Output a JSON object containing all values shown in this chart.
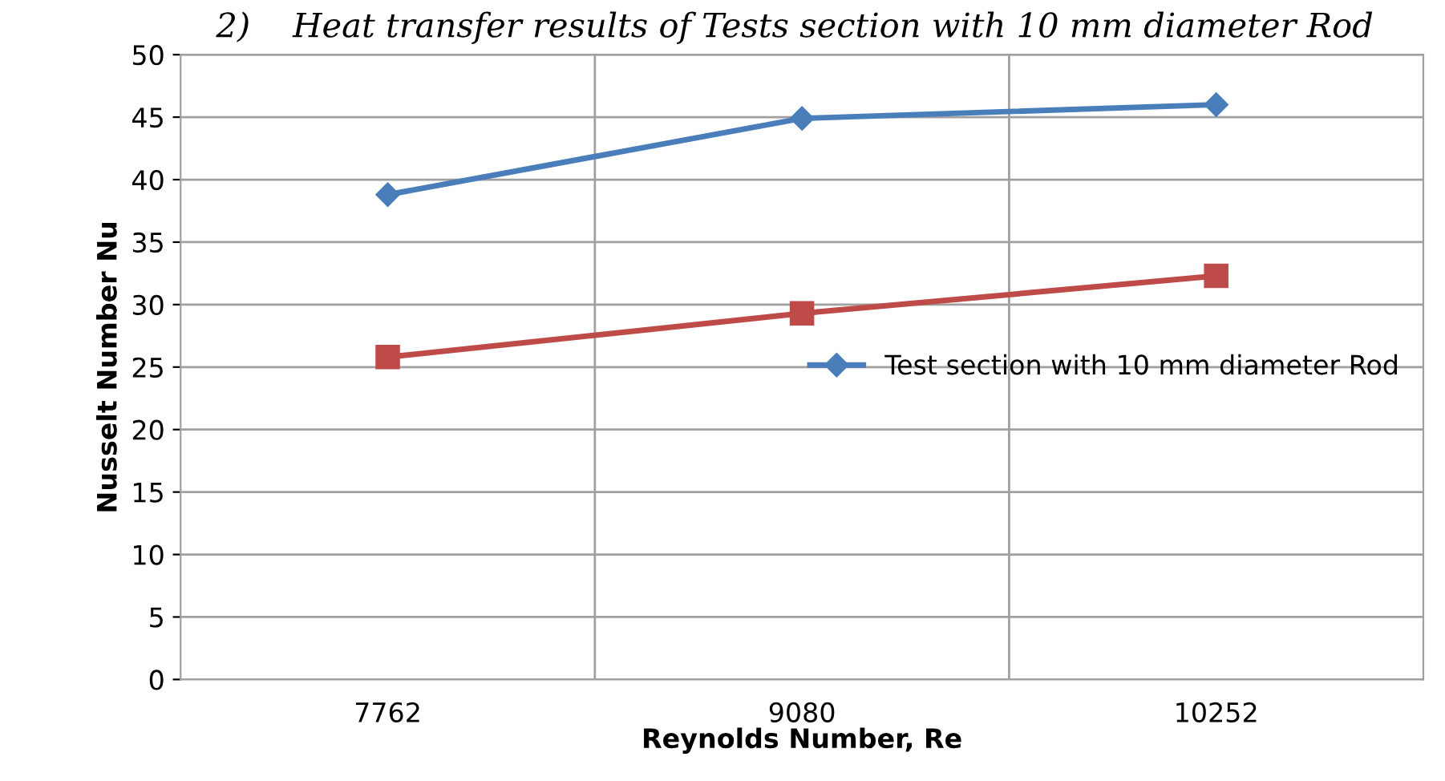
{
  "chart_data": {
    "type": "line",
    "title": "2)    Heat transfer results of Tests section with 10 mm diameter Rod",
    "xlabel": "Reynolds Number, Re",
    "ylabel": "Nusselt Number Nu",
    "categories": [
      "7762",
      "9080",
      "10252"
    ],
    "series": [
      {
        "name": "Test section with 10 mm diameter Rod",
        "color": "#4a7ebb",
        "marker": "diamond",
        "values": [
          38.8,
          44.9,
          46.0
        ]
      },
      {
        "color": "#be4b48",
        "marker": "square",
        "values": [
          25.8,
          29.3,
          32.3
        ]
      }
    ],
    "ylim": [
      0,
      50
    ],
    "yticks": [
      0,
      5,
      10,
      15,
      20,
      25,
      30,
      35,
      40,
      45,
      50
    ],
    "grid": true,
    "legend": "center right"
  }
}
